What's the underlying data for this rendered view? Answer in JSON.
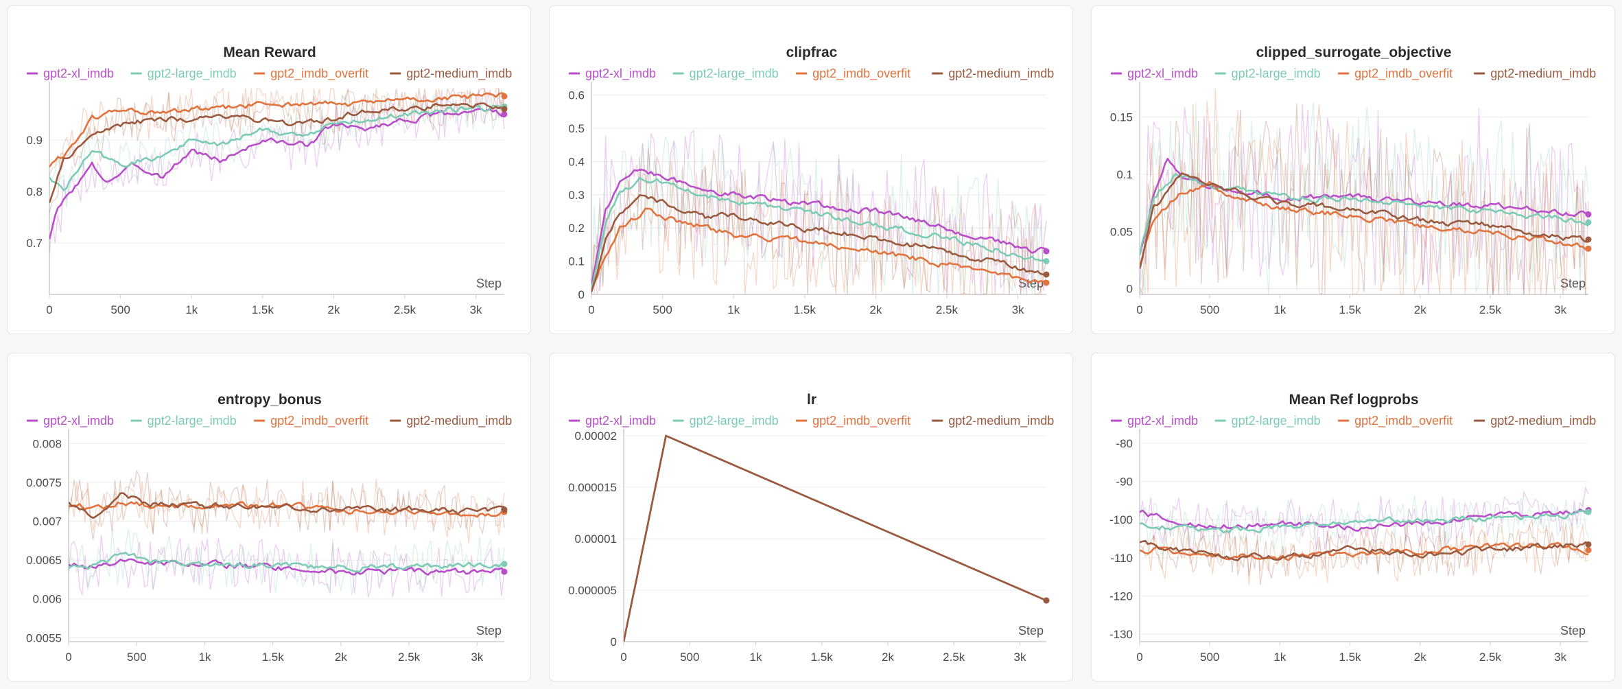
{
  "colors": {
    "gpt2-xl_imdb": "#b84fc9",
    "gpt2-large_imdb": "#7ccbb4",
    "gpt2_imdb_overfit": "#e0733e",
    "gpt2-medium_imdb": "#9a5a3f"
  },
  "legend": [
    "gpt2-xl_imdb",
    "gpt2-large_imdb",
    "gpt2_imdb_overfit",
    "gpt2-medium_imdb"
  ],
  "x_axis_label": "Step",
  "chart_data": [
    {
      "type": "line",
      "title": "Mean Reward",
      "xlabel": "Step",
      "xlim": [
        0,
        3200
      ],
      "ylim": [
        0.6,
        1.0
      ],
      "xticks": [
        0,
        500,
        1000,
        1500,
        2000,
        2500,
        3000
      ],
      "xtick_labels": [
        "0",
        "500",
        "1k",
        "1.5k",
        "2k",
        "2.5k",
        "3k"
      ],
      "yticks": [
        0.7,
        0.8,
        0.9
      ],
      "ytick_labels": [
        "0.7",
        "0.8",
        "0.9"
      ],
      "noise": 0.05,
      "series": [
        {
          "name": "gpt2-xl_imdb",
          "x": [
            0,
            50,
            150,
            300,
            400,
            600,
            800,
            1000,
            1200,
            1500,
            1800,
            2000,
            2200,
            2500,
            2800,
            3000,
            3200
          ],
          "values": [
            0.71,
            0.76,
            0.8,
            0.85,
            0.82,
            0.85,
            0.83,
            0.88,
            0.86,
            0.9,
            0.89,
            0.93,
            0.92,
            0.94,
            0.95,
            0.96,
            0.95
          ]
        },
        {
          "name": "gpt2-large_imdb",
          "x": [
            0,
            100,
            300,
            500,
            800,
            1000,
            1200,
            1500,
            1800,
            2000,
            2200,
            2500,
            2800,
            3000,
            3200
          ],
          "values": [
            0.83,
            0.8,
            0.88,
            0.85,
            0.87,
            0.9,
            0.89,
            0.92,
            0.91,
            0.93,
            0.94,
            0.95,
            0.96,
            0.96,
            0.965
          ]
        },
        {
          "name": "gpt2_imdb_overfit",
          "x": [
            0,
            100,
            300,
            500,
            800,
            1000,
            1200,
            1500,
            1800,
            2000,
            2200,
            2500,
            2800,
            3000,
            3200
          ],
          "values": [
            0.85,
            0.87,
            0.94,
            0.96,
            0.95,
            0.96,
            0.96,
            0.97,
            0.97,
            0.97,
            0.97,
            0.98,
            0.98,
            0.985,
            0.985
          ]
        },
        {
          "name": "gpt2-medium_imdb",
          "x": [
            0,
            100,
            300,
            500,
            800,
            1000,
            1200,
            1500,
            1800,
            2000,
            2200,
            2500,
            2800,
            3000,
            3200
          ],
          "values": [
            0.78,
            0.86,
            0.91,
            0.93,
            0.94,
            0.94,
            0.95,
            0.94,
            0.93,
            0.94,
            0.96,
            0.96,
            0.97,
            0.97,
            0.96
          ]
        }
      ]
    },
    {
      "type": "line",
      "title": "clipfrac",
      "xlabel": "Step",
      "xlim": [
        0,
        3200
      ],
      "ylim": [
        0,
        0.62
      ],
      "xticks": [
        0,
        500,
        1000,
        1500,
        2000,
        2500,
        3000
      ],
      "xtick_labels": [
        "0",
        "500",
        "1k",
        "1.5k",
        "2k",
        "2.5k",
        "3k"
      ],
      "yticks": [
        0,
        0.1,
        0.2,
        0.3,
        0.4,
        0.5,
        0.6
      ],
      "ytick_labels": [
        "0",
        "0.1",
        "0.2",
        "0.3",
        "0.4",
        "0.5",
        "0.6"
      ],
      "noise": 0.2,
      "series": [
        {
          "name": "gpt2-xl_imdb",
          "x": [
            0,
            100,
            200,
            350,
            500,
            800,
            1000,
            1500,
            2000,
            2500,
            3000,
            3200
          ],
          "values": [
            0.03,
            0.25,
            0.34,
            0.38,
            0.35,
            0.32,
            0.3,
            0.27,
            0.25,
            0.2,
            0.14,
            0.13
          ]
        },
        {
          "name": "gpt2-large_imdb",
          "x": [
            0,
            100,
            200,
            350,
            500,
            800,
            1000,
            1500,
            2000,
            2500,
            3000,
            3200
          ],
          "values": [
            0.02,
            0.22,
            0.3,
            0.35,
            0.34,
            0.3,
            0.28,
            0.25,
            0.21,
            0.17,
            0.12,
            0.1
          ]
        },
        {
          "name": "gpt2_imdb_overfit",
          "x": [
            0,
            100,
            200,
            400,
            600,
            800,
            1000,
            1500,
            2000,
            2500,
            3000,
            3200
          ],
          "values": [
            0.01,
            0.12,
            0.2,
            0.26,
            0.22,
            0.2,
            0.18,
            0.16,
            0.13,
            0.09,
            0.05,
            0.035
          ]
        },
        {
          "name": "gpt2-medium_imdb",
          "x": [
            0,
            100,
            200,
            350,
            600,
            800,
            1000,
            1500,
            2000,
            2500,
            3000,
            3200
          ],
          "values": [
            0.01,
            0.16,
            0.25,
            0.3,
            0.26,
            0.23,
            0.24,
            0.2,
            0.17,
            0.13,
            0.08,
            0.06
          ]
        }
      ]
    },
    {
      "type": "line",
      "title": "clipped_surrogate_objective",
      "xlabel": "Step",
      "xlim": [
        0,
        3200
      ],
      "ylim": [
        -0.005,
        0.175
      ],
      "xticks": [
        0,
        500,
        1000,
        1500,
        2000,
        2500,
        3000
      ],
      "xtick_labels": [
        "0",
        "500",
        "1k",
        "1.5k",
        "2k",
        "2.5k",
        "3k"
      ],
      "yticks": [
        0,
        0.05,
        0.1,
        0.15
      ],
      "ytick_labels": [
        "0",
        "0.05",
        "0.1",
        "0.15"
      ],
      "noise": 0.08,
      "series": [
        {
          "name": "gpt2-xl_imdb",
          "x": [
            0,
            100,
            200,
            300,
            500,
            800,
            1000,
            1500,
            2000,
            2500,
            3000,
            3200
          ],
          "values": [
            0.03,
            0.08,
            0.115,
            0.1,
            0.09,
            0.085,
            0.08,
            0.08,
            0.075,
            0.072,
            0.068,
            0.065
          ]
        },
        {
          "name": "gpt2-large_imdb",
          "x": [
            0,
            100,
            250,
            400,
            600,
            800,
            1000,
            1500,
            2000,
            2500,
            3000,
            3200
          ],
          "values": [
            0.03,
            0.08,
            0.1,
            0.095,
            0.088,
            0.085,
            0.08,
            0.078,
            0.072,
            0.068,
            0.062,
            0.058
          ]
        },
        {
          "name": "gpt2_imdb_overfit",
          "x": [
            0,
            100,
            300,
            500,
            700,
            1000,
            1500,
            2000,
            2500,
            3000,
            3200
          ],
          "values": [
            0.02,
            0.06,
            0.085,
            0.09,
            0.08,
            0.07,
            0.065,
            0.055,
            0.05,
            0.04,
            0.035
          ]
        },
        {
          "name": "gpt2-medium_imdb",
          "x": [
            0,
            100,
            300,
            500,
            700,
            1000,
            1500,
            2000,
            2500,
            3000,
            3200
          ],
          "values": [
            0.018,
            0.07,
            0.1,
            0.09,
            0.085,
            0.075,
            0.07,
            0.06,
            0.055,
            0.045,
            0.043
          ]
        }
      ]
    },
    {
      "type": "line",
      "title": "entropy_bonus",
      "xlabel": "Step",
      "xlim": [
        0,
        3200
      ],
      "ylim": [
        0.00545,
        0.0081
      ],
      "xticks": [
        0,
        500,
        1000,
        1500,
        2000,
        2500,
        3000
      ],
      "xtick_labels": [
        "0",
        "500",
        "1k",
        "1.5k",
        "2k",
        "2.5k",
        "3k"
      ],
      "yticks": [
        0.0055,
        0.006,
        0.0065,
        0.007,
        0.0075,
        0.008
      ],
      "ytick_labels": [
        "0.0055",
        "0.006",
        "0.0065",
        "0.007",
        "0.0075",
        "0.008"
      ],
      "noise": 0.00035,
      "series": [
        {
          "name": "gpt2-xl_imdb",
          "x": [
            0,
            200,
            400,
            600,
            1000,
            1500,
            2000,
            2500,
            3000,
            3200
          ],
          "values": [
            0.00645,
            0.0064,
            0.0065,
            0.00648,
            0.00645,
            0.0064,
            0.00635,
            0.00636,
            0.00634,
            0.00635
          ]
        },
        {
          "name": "gpt2-large_imdb",
          "x": [
            0,
            200,
            400,
            600,
            1000,
            1500,
            2000,
            2500,
            3000,
            3200
          ],
          "values": [
            0.0064,
            0.00642,
            0.0066,
            0.00648,
            0.00642,
            0.00645,
            0.0064,
            0.00642,
            0.00645,
            0.00645
          ]
        },
        {
          "name": "gpt2_imdb_overfit",
          "x": [
            0,
            200,
            400,
            600,
            1000,
            1500,
            2000,
            2500,
            3000,
            3200
          ],
          "values": [
            0.0072,
            0.00718,
            0.00725,
            0.0072,
            0.00718,
            0.0072,
            0.00715,
            0.00712,
            0.0071,
            0.00712
          ]
        },
        {
          "name": "gpt2-medium_imdb",
          "x": [
            0,
            200,
            400,
            600,
            1000,
            1500,
            2000,
            2500,
            3000,
            3200
          ],
          "values": [
            0.00725,
            0.00705,
            0.00735,
            0.00722,
            0.0072,
            0.00718,
            0.00715,
            0.00715,
            0.00712,
            0.00715
          ]
        }
      ]
    },
    {
      "type": "line",
      "title": "lr",
      "xlabel": "Step",
      "xlim": [
        0,
        3200
      ],
      "ylim": [
        0,
        2e-05
      ],
      "xticks": [
        0,
        500,
        1000,
        1500,
        2000,
        2500,
        3000
      ],
      "xtick_labels": [
        "0",
        "500",
        "1k",
        "1.5k",
        "2k",
        "2.5k",
        "3k"
      ],
      "yticks": [
        0,
        5e-06,
        1e-05,
        1.5e-05,
        2e-05
      ],
      "ytick_labels": [
        "0",
        "0.000005",
        "0.00001",
        "0.000015",
        "0.00002"
      ],
      "noise": 0,
      "series": [
        {
          "name": "gpt2-xl_imdb",
          "x": [
            0,
            320,
            3200
          ],
          "values": [
            0,
            2e-05,
            4e-06
          ]
        },
        {
          "name": "gpt2-large_imdb",
          "x": [
            0,
            320,
            3200
          ],
          "values": [
            0,
            2e-05,
            4e-06
          ]
        },
        {
          "name": "gpt2_imdb_overfit",
          "x": [
            0,
            320,
            3200
          ],
          "values": [
            0,
            2e-05,
            4e-06
          ]
        },
        {
          "name": "gpt2-medium_imdb",
          "x": [
            0,
            320,
            3200
          ],
          "values": [
            0,
            2e-05,
            4e-06
          ]
        }
      ]
    },
    {
      "type": "line",
      "title": "Mean Ref logprobs",
      "xlabel": "Step",
      "xlim": [
        0,
        3200
      ],
      "ylim": [
        -132,
        -78
      ],
      "xticks": [
        0,
        500,
        1000,
        1500,
        2000,
        2500,
        3000
      ],
      "xtick_labels": [
        "0",
        "500",
        "1k",
        "1.5k",
        "2k",
        "2.5k",
        "3k"
      ],
      "yticks": [
        -130,
        -120,
        -110,
        -100,
        -90,
        -80
      ],
      "ytick_labels": [
        "-130",
        "-120",
        "-110",
        "-100",
        "-90",
        "-80"
      ],
      "noise": 7,
      "series": [
        {
          "name": "gpt2-xl_imdb",
          "x": [
            0,
            200,
            500,
            1000,
            1500,
            2000,
            2500,
            3000,
            3200
          ],
          "values": [
            -98,
            -100,
            -102,
            -101,
            -102,
            -101,
            -99,
            -98,
            -97.5
          ]
        },
        {
          "name": "gpt2-large_imdb",
          "x": [
            0,
            200,
            500,
            1000,
            1500,
            2000,
            2500,
            3000,
            3200
          ],
          "values": [
            -101,
            -102,
            -103,
            -102,
            -101,
            -100,
            -99.5,
            -99,
            -98
          ]
        },
        {
          "name": "gpt2_imdb_overfit",
          "x": [
            0,
            200,
            500,
            1000,
            1500,
            2000,
            2500,
            3000,
            3200
          ],
          "values": [
            -108,
            -108,
            -109,
            -110,
            -109,
            -108,
            -107,
            -107,
            -108
          ]
        },
        {
          "name": "gpt2-medium_imdb",
          "x": [
            0,
            200,
            500,
            1000,
            1500,
            2000,
            2500,
            3000,
            3200
          ],
          "values": [
            -106,
            -108,
            -109,
            -110,
            -108,
            -109,
            -108,
            -107,
            -106.5
          ]
        }
      ]
    }
  ]
}
